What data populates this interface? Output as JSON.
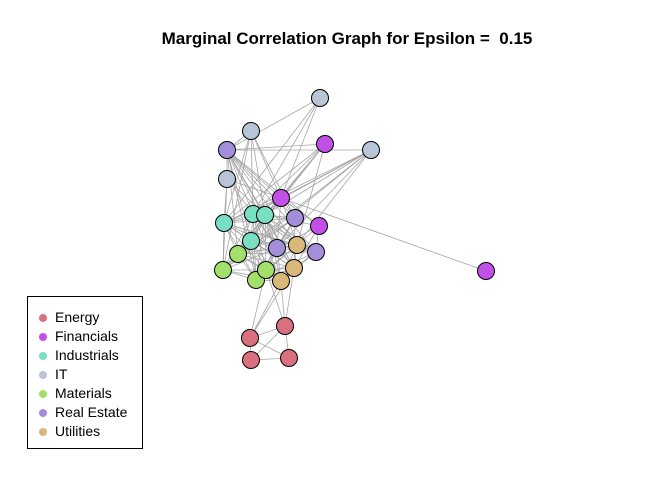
{
  "title": "Marginal Correlation Graph for Epsilon =  0.15",
  "groups": {
    "Energy": "#d9707f",
    "Financials": "#c350e6",
    "Industrials": "#79dfc2",
    "IT": "#b8c5d6",
    "Materials": "#a2e06b",
    "Real Estate": "#a38fd9",
    "Utilities": "#d9b97a"
  },
  "legend": {
    "items": [
      {
        "label": "Energy",
        "color": "#d9707f"
      },
      {
        "label": "Financials",
        "color": "#c350e6"
      },
      {
        "label": "Industrials",
        "color": "#79dfc2"
      },
      {
        "label": "IT",
        "color": "#b8c5d6"
      },
      {
        "label": "Materials",
        "color": "#a2e06b"
      },
      {
        "label": "Real Estate",
        "color": "#a38fd9"
      },
      {
        "label": "Utilities",
        "color": "#d9b97a"
      }
    ]
  },
  "graph": {
    "edge_color": "#a6a6a6",
    "node_border": "#000000",
    "nodes": [
      {
        "id": "it1",
        "group": "IT"
      },
      {
        "id": "it2",
        "group": "IT"
      },
      {
        "id": "it3",
        "group": "IT"
      },
      {
        "id": "it4",
        "group": "IT"
      },
      {
        "id": "fin1",
        "group": "Financials"
      },
      {
        "id": "fin2",
        "group": "Financials"
      },
      {
        "id": "fin3",
        "group": "Financials"
      },
      {
        "id": "fin4",
        "group": "Financials"
      },
      {
        "id": "re1",
        "group": "Real Estate"
      },
      {
        "id": "re2",
        "group": "Real Estate"
      },
      {
        "id": "re3",
        "group": "Real Estate"
      },
      {
        "id": "re4",
        "group": "Real Estate"
      },
      {
        "id": "ind1",
        "group": "Industrials"
      },
      {
        "id": "ind2",
        "group": "Industrials"
      },
      {
        "id": "ind3",
        "group": "Industrials"
      },
      {
        "id": "ind4",
        "group": "Industrials"
      },
      {
        "id": "mat1",
        "group": "Materials"
      },
      {
        "id": "mat2",
        "group": "Materials"
      },
      {
        "id": "mat3",
        "group": "Materials"
      },
      {
        "id": "mat4",
        "group": "Materials"
      },
      {
        "id": "ut1",
        "group": "Utilities"
      },
      {
        "id": "ut2",
        "group": "Utilities"
      },
      {
        "id": "ut3",
        "group": "Utilities"
      },
      {
        "id": "en1",
        "group": "Energy"
      },
      {
        "id": "en2",
        "group": "Energy"
      },
      {
        "id": "en3",
        "group": "Energy"
      },
      {
        "id": "en4",
        "group": "Energy"
      }
    ],
    "edges": [
      [
        "it1",
        "fin1"
      ],
      [
        "it1",
        "ind1"
      ],
      [
        "it1",
        "ind2"
      ],
      [
        "it1",
        "re1"
      ],
      [
        "it2",
        "fin1"
      ],
      [
        "it2",
        "ind1"
      ],
      [
        "it2",
        "ind2"
      ],
      [
        "it2",
        "ind3"
      ],
      [
        "it2",
        "re1"
      ],
      [
        "it2",
        "re2"
      ],
      [
        "it2",
        "mat1"
      ],
      [
        "it3",
        "fin1"
      ],
      [
        "it3",
        "ind1"
      ],
      [
        "it3",
        "ind2"
      ],
      [
        "it3",
        "ind3"
      ],
      [
        "it3",
        "re1"
      ],
      [
        "it3",
        "mat1"
      ],
      [
        "it4",
        "fin1"
      ],
      [
        "it4",
        "ind1"
      ],
      [
        "it4",
        "ind2"
      ],
      [
        "it4",
        "ind3"
      ],
      [
        "it4",
        "re1"
      ],
      [
        "it4",
        "ut1"
      ],
      [
        "it4",
        "mat1"
      ],
      [
        "it4",
        "mat2"
      ],
      [
        "it4",
        "re3"
      ],
      [
        "fin2",
        "fin1"
      ],
      [
        "fin2",
        "ind1"
      ],
      [
        "fin2",
        "ind2"
      ],
      [
        "fin2",
        "ind3"
      ],
      [
        "fin2",
        "re1"
      ],
      [
        "fin2",
        "ut1"
      ],
      [
        "fin2",
        "mat2"
      ],
      [
        "fin3",
        "fin1"
      ],
      [
        "re2",
        "fin1"
      ],
      [
        "re2",
        "ind1"
      ],
      [
        "re2",
        "ind2"
      ],
      [
        "re2",
        "ind3"
      ],
      [
        "re2",
        "re1"
      ],
      [
        "re2",
        "mat1"
      ],
      [
        "re2",
        "mat2"
      ],
      [
        "re2",
        "mat3"
      ],
      [
        "re2",
        "mat4"
      ],
      [
        "re2",
        "ut2"
      ],
      [
        "re2",
        "re3"
      ],
      [
        "fin1",
        "ind1"
      ],
      [
        "fin1",
        "ind2"
      ],
      [
        "fin1",
        "ind3"
      ],
      [
        "fin1",
        "ind4"
      ],
      [
        "fin1",
        "re1"
      ],
      [
        "fin1",
        "fin4"
      ],
      [
        "fin1",
        "ut1"
      ],
      [
        "fin1",
        "re3"
      ],
      [
        "fin1",
        "mat2"
      ],
      [
        "ind1",
        "ind2"
      ],
      [
        "ind1",
        "ind3"
      ],
      [
        "ind1",
        "ind4"
      ],
      [
        "ind1",
        "mat1"
      ],
      [
        "ind1",
        "mat2"
      ],
      [
        "ind1",
        "re3"
      ],
      [
        "ind1",
        "ut1"
      ],
      [
        "ind1",
        "re4"
      ],
      [
        "ind1",
        "ut2"
      ],
      [
        "ind1",
        "mat3"
      ],
      [
        "ind1",
        "mat4"
      ],
      [
        "ind2",
        "ind3"
      ],
      [
        "ind2",
        "ind4"
      ],
      [
        "ind2",
        "re1"
      ],
      [
        "ind2",
        "re3"
      ],
      [
        "ind2",
        "ut1"
      ],
      [
        "ind2",
        "mat1"
      ],
      [
        "ind2",
        "mat2"
      ],
      [
        "ind2",
        "mat3"
      ],
      [
        "ind2",
        "ut2"
      ],
      [
        "ind2",
        "ut3"
      ],
      [
        "ind2",
        "re4"
      ],
      [
        "ind2",
        "mat4"
      ],
      [
        "ind3",
        "ind4"
      ],
      [
        "ind3",
        "re1"
      ],
      [
        "ind3",
        "fin4"
      ],
      [
        "ind3",
        "ut1"
      ],
      [
        "ind3",
        "re3"
      ],
      [
        "ind3",
        "mat1"
      ],
      [
        "ind3",
        "mat2"
      ],
      [
        "ind3",
        "mat3"
      ],
      [
        "ind3",
        "ut3"
      ],
      [
        "ind3",
        "re4"
      ],
      [
        "ind3",
        "mat4"
      ],
      [
        "ind3",
        "ut2"
      ],
      [
        "re1",
        "fin4"
      ],
      [
        "re1",
        "ut1"
      ],
      [
        "re1",
        "re3"
      ],
      [
        "re1",
        "re4"
      ],
      [
        "re1",
        "ind4"
      ],
      [
        "re1",
        "mat2"
      ],
      [
        "re1",
        "ut2"
      ],
      [
        "re1",
        "mat3"
      ],
      [
        "fin4",
        "ut1"
      ],
      [
        "fin4",
        "re4"
      ],
      [
        "fin4",
        "ut2"
      ],
      [
        "fin4",
        "re3"
      ],
      [
        "ind4",
        "mat1"
      ],
      [
        "ind4",
        "mat2"
      ],
      [
        "ind4",
        "re3"
      ],
      [
        "ind4",
        "ut1"
      ],
      [
        "ind4",
        "ut2"
      ],
      [
        "ind4",
        "ut3"
      ],
      [
        "ind4",
        "mat3"
      ],
      [
        "ind4",
        "mat4"
      ],
      [
        "ind4",
        "re4"
      ],
      [
        "mat1",
        "mat2"
      ],
      [
        "mat1",
        "mat4"
      ],
      [
        "mat1",
        "mat3"
      ],
      [
        "mat1",
        "re3"
      ],
      [
        "mat1",
        "ut3"
      ],
      [
        "mat2",
        "re3"
      ],
      [
        "mat2",
        "ut1"
      ],
      [
        "mat2",
        "mat4"
      ],
      [
        "mat2",
        "mat3"
      ],
      [
        "mat2",
        "ut3"
      ],
      [
        "mat2",
        "ut2"
      ],
      [
        "mat2",
        "re4"
      ],
      [
        "re3",
        "ut1"
      ],
      [
        "re3",
        "ut2"
      ],
      [
        "re3",
        "ut3"
      ],
      [
        "re3",
        "re4"
      ],
      [
        "re3",
        "mat3"
      ],
      [
        "re3",
        "mat4"
      ],
      [
        "ut1",
        "re4"
      ],
      [
        "ut1",
        "ut2"
      ],
      [
        "ut1",
        "ut3"
      ],
      [
        "ut1",
        "mat3"
      ],
      [
        "ut1",
        "mat4"
      ],
      [
        "re4",
        "ut2"
      ],
      [
        "re4",
        "ut3"
      ],
      [
        "re4",
        "mat3"
      ],
      [
        "mat3",
        "mat4"
      ],
      [
        "mat3",
        "ut2"
      ],
      [
        "mat3",
        "ut3"
      ],
      [
        "mat4",
        "ut3"
      ],
      [
        "mat4",
        "ut2"
      ],
      [
        "ut2",
        "ut3"
      ],
      [
        "ut3",
        "en1"
      ],
      [
        "ut3",
        "en2"
      ],
      [
        "ut2",
        "en1"
      ],
      [
        "ut2",
        "en2"
      ],
      [
        "mat4",
        "en1"
      ],
      [
        "mat4",
        "en2"
      ],
      [
        "en1",
        "en2"
      ],
      [
        "en1",
        "en3"
      ],
      [
        "en1",
        "en4"
      ],
      [
        "en2",
        "en3"
      ],
      [
        "en2",
        "en4"
      ],
      [
        "en3",
        "en4"
      ]
    ]
  }
}
